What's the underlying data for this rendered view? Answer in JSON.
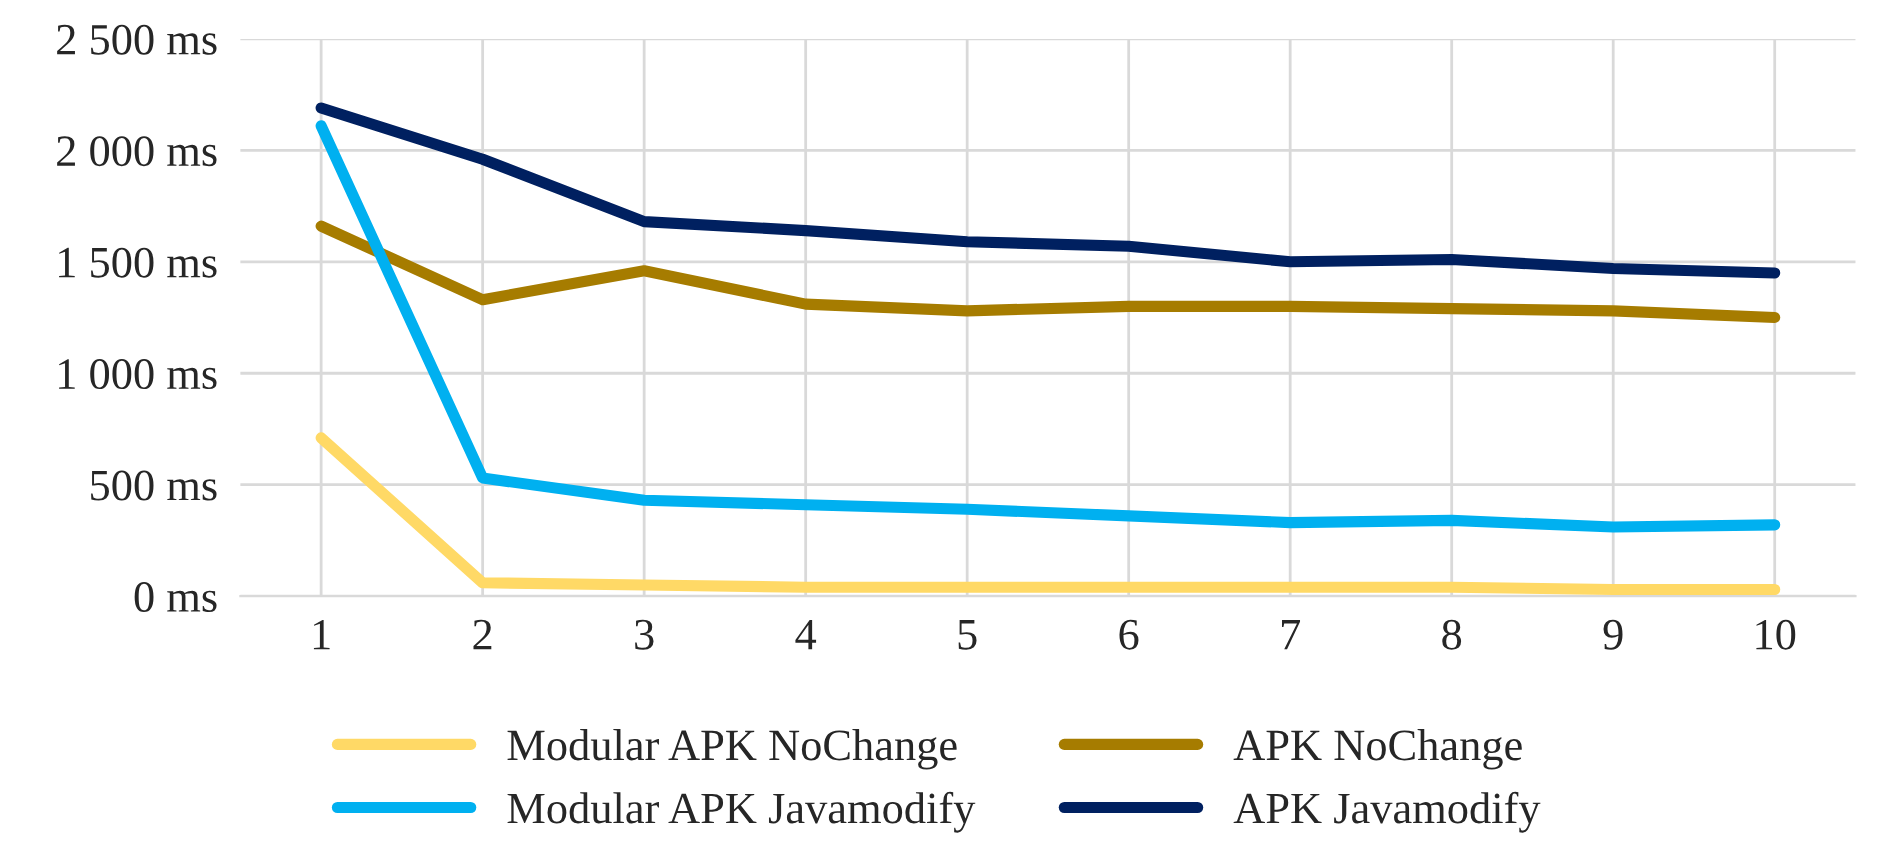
{
  "chart_data": {
    "type": "line",
    "categories": [
      "1",
      "2",
      "3",
      "4",
      "5",
      "6",
      "7",
      "8",
      "9",
      "10"
    ],
    "series": [
      {
        "name": "Modular APK NoChange",
        "color": "#ffd966",
        "values": [
          710,
          60,
          50,
          40,
          40,
          40,
          40,
          40,
          30,
          30
        ]
      },
      {
        "name": "APK NoChange",
        "color": "#a67c00",
        "values": [
          1660,
          1330,
          1460,
          1310,
          1280,
          1300,
          1300,
          1290,
          1280,
          1250
        ]
      },
      {
        "name": "Modular APK Javamodify",
        "color": "#00b0f0",
        "values": [
          2110,
          530,
          430,
          410,
          390,
          360,
          330,
          340,
          310,
          320
        ]
      },
      {
        "name": "APK Javamodify",
        "color": "#002060",
        "values": [
          2190,
          1960,
          1680,
          1640,
          1590,
          1570,
          1500,
          1510,
          1470,
          1450
        ]
      }
    ],
    "ylim": [
      0,
      2500
    ],
    "yticks": [
      {
        "value": 0,
        "label": "0 ms"
      },
      {
        "value": 500,
        "label": "500 ms"
      },
      {
        "value": 1000,
        "label": "1 000 ms"
      },
      {
        "value": 1500,
        "label": "1 500 ms"
      },
      {
        "value": 2000,
        "label": "2 000 ms"
      },
      {
        "value": 2500,
        "label": "2 500 ms"
      }
    ],
    "grid": true,
    "legend": "bottom",
    "marker": "none",
    "line_style": "solid"
  }
}
